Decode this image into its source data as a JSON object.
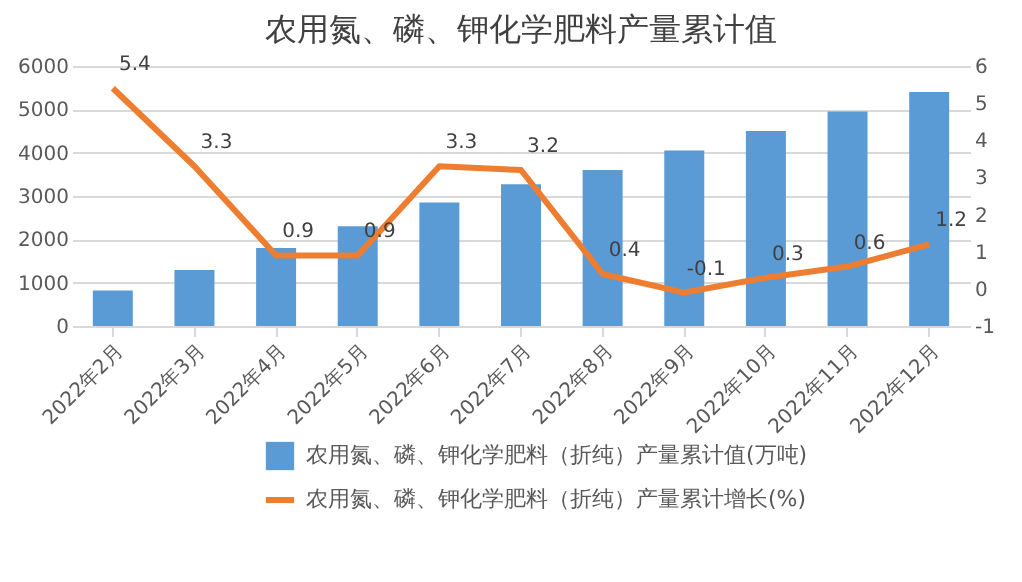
{
  "chart_data": {
    "type": "bar",
    "title": "农用氮、磷、钾化学肥料产量累计值",
    "categories": [
      "2022年2月",
      "2022年3月",
      "2022年4月",
      "2022年5月",
      "2022年6月",
      "2022年7月",
      "2022年8月",
      "2022年9月",
      "2022年10月",
      "2022年11月",
      "2022年12月"
    ],
    "series": [
      {
        "name": "农用氮、磷、钾化学肥料（折纯）产量累计值(万吨)",
        "color": "#5b9bd5",
        "values": [
          820,
          1290,
          1800,
          2300,
          2850,
          3270,
          3600,
          4050,
          4500,
          4950,
          5400
        ]
      },
      {
        "name": "农用氮、磷、钾化学肥料（折纯）产量累计增长(%)",
        "type": "line",
        "axis": "y2",
        "color": "#ed7d31",
        "values": [
          5.4,
          3.3,
          0.9,
          0.9,
          3.3,
          3.2,
          0.4,
          -0.1,
          0.3,
          0.6,
          1.2
        ],
        "data_labels": true
      }
    ],
    "ylim": [
      0,
      6000
    ],
    "yticks": [
      0,
      1000,
      2000,
      3000,
      4000,
      5000,
      6000
    ],
    "y2lim": [
      -1,
      6
    ],
    "y2ticks": [
      -1,
      0,
      1,
      2,
      3,
      4,
      5,
      6
    ],
    "grid": "y",
    "legend": "bottom",
    "marker": "none",
    "line_style": "solid"
  }
}
